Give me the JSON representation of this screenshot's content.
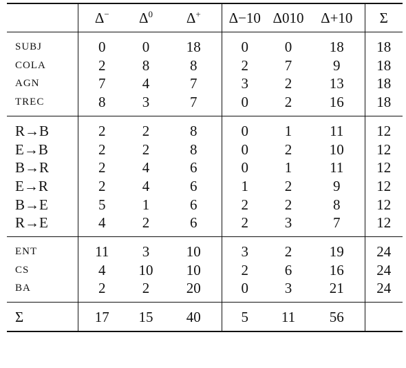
{
  "table": {
    "header": [
      {
        "base": "Δ",
        "sup": "−"
      },
      {
        "base": "Δ",
        "sup": "0"
      },
      {
        "base": "Δ",
        "sup": "+"
      },
      {
        "base": "Δ",
        "sup": "−",
        "sub": "10"
      },
      {
        "base": "Δ",
        "sup": "0",
        "sub": "10"
      },
      {
        "base": "Δ",
        "sup": "+",
        "sub": "10"
      },
      {
        "base": "Σ"
      }
    ],
    "groups": [
      {
        "rows": [
          {
            "label": "SUBJ",
            "values": [
              0,
              0,
              18,
              0,
              0,
              18,
              18
            ]
          },
          {
            "label": "COLA",
            "values": [
              2,
              8,
              8,
              2,
              7,
              9,
              18
            ]
          },
          {
            "label": "AGN",
            "values": [
              7,
              4,
              7,
              3,
              2,
              13,
              18
            ]
          },
          {
            "label": "TREC",
            "values": [
              8,
              3,
              7,
              0,
              2,
              16,
              18
            ]
          }
        ]
      },
      {
        "rows": [
          {
            "label": "R→B",
            "values": [
              2,
              2,
              8,
              0,
              1,
              11,
              12
            ]
          },
          {
            "label": "E→B",
            "values": [
              2,
              2,
              8,
              0,
              2,
              10,
              12
            ]
          },
          {
            "label": "B→R",
            "values": [
              2,
              4,
              6,
              0,
              1,
              11,
              12
            ]
          },
          {
            "label": "E→R",
            "values": [
              2,
              4,
              6,
              1,
              2,
              9,
              12
            ]
          },
          {
            "label": "B→E",
            "values": [
              5,
              1,
              6,
              2,
              2,
              8,
              12
            ]
          },
          {
            "label": "R→E",
            "values": [
              4,
              2,
              6,
              2,
              3,
              7,
              12
            ]
          }
        ]
      },
      {
        "rows": [
          {
            "label": "ENT",
            "values": [
              11,
              3,
              10,
              3,
              2,
              19,
              24
            ]
          },
          {
            "label": "CS",
            "values": [
              4,
              10,
              10,
              2,
              6,
              16,
              24
            ]
          },
          {
            "label": "BA",
            "values": [
              2,
              2,
              20,
              0,
              3,
              21,
              24
            ]
          }
        ]
      }
    ],
    "total": {
      "label": "Σ",
      "values": [
        17,
        15,
        40,
        5,
        11,
        56
      ]
    }
  }
}
